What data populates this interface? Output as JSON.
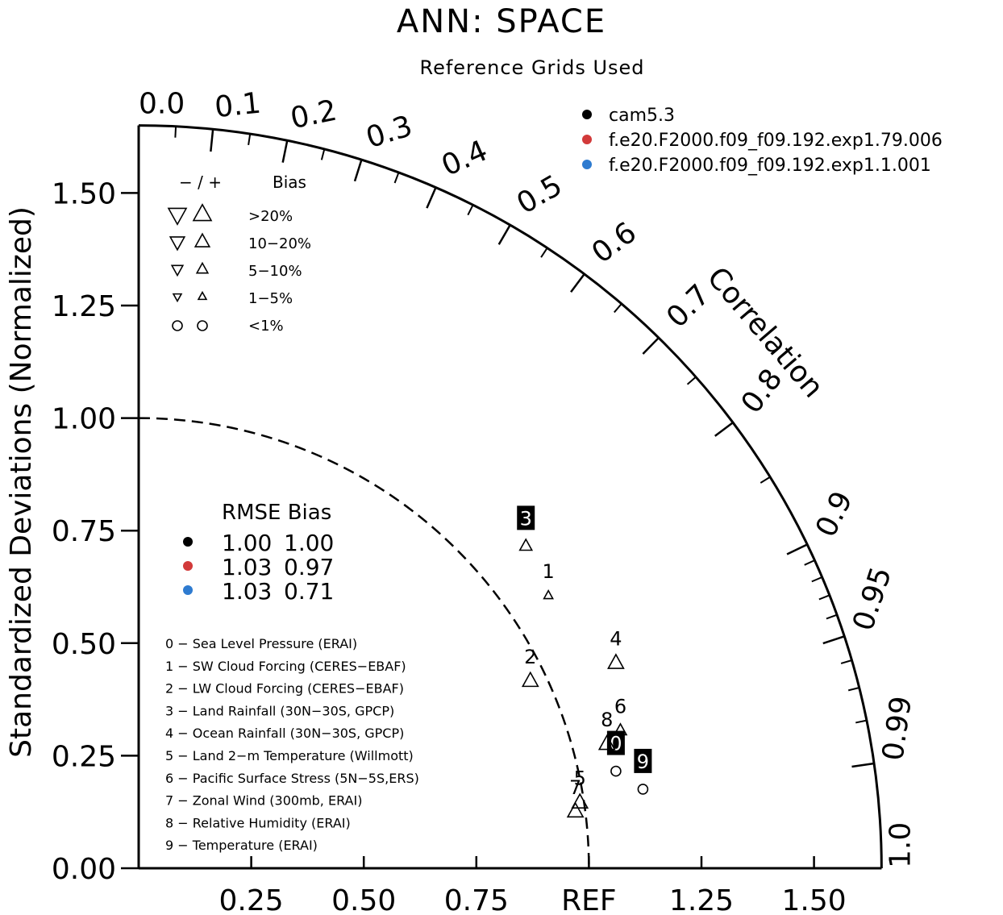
{
  "chart_data": {
    "type": "scatter",
    "subtype": "taylor-diagram",
    "title": "ANN: SPACE",
    "subtitle": "Reference Grids Used",
    "ylabel": "Standardized Deviations (Normalized)",
    "correlation_label": "Correlation",
    "ref_label": "REF",
    "y_ticks": [
      "0.00",
      "0.25",
      "0.50",
      "0.75",
      "1.00",
      "1.25",
      "1.50"
    ],
    "x_ticks": [
      "0.25",
      "0.50",
      "0.75",
      "1.25",
      "1.50"
    ],
    "corr_ticks": [
      "0.0",
      "0.1",
      "0.2",
      "0.3",
      "0.4",
      "0.5",
      "0.6",
      "0.7",
      "0.8",
      "0.9",
      "0.95",
      "0.99",
      "1.0"
    ],
    "max_std": 1.65,
    "colors": {
      "black": "#000000",
      "red": "#d23a3a",
      "blue": "#2e7bd0"
    },
    "series": [
      {
        "name": "cam5.3",
        "color": "#000000",
        "rmse": "1.00",
        "bias": "1.00"
      },
      {
        "name": "f.e20.F2000.f09_f09.192.exp1.79.006",
        "color": "#d23a3a",
        "rmse": "1.03",
        "bias": "0.97"
      },
      {
        "name": "f.e20.F2000.f09_f09.192.exp1.1.001",
        "color": "#2e7bd0",
        "rmse": "1.03",
        "bias": "0.71"
      }
    ],
    "bias_legend": {
      "header_sign": "−  /  +",
      "header": "Bias",
      "rows": [
        {
          "label": ">20%",
          "size": 1.0
        },
        {
          "label": "10−20%",
          "size": 0.8
        },
        {
          "label": "5−10%",
          "size": 0.62
        },
        {
          "label": "1−5%",
          "size": 0.45
        },
        {
          "label": "<1%",
          "size": 0
        }
      ]
    },
    "rmse_legend": {
      "header": "RMSE Bias"
    },
    "variables": [
      "0 − Sea Level Pressure (ERAI)",
      "1 − SW Cloud Forcing (CERES−EBAF)",
      "2 − LW Cloud Forcing (CERES−EBAF)",
      "3 − Land Rainfall (30N−30S, GPCP)",
      "4 − Ocean Rainfall (30N−30S, GPCP)",
      "5 − Land 2−m Temperature (Willmott)",
      "6 − Pacific Surface Stress (5N−5S,ERS)",
      "7 − Zonal Wind (300mb, ERAI)",
      "8 − Relative Humidity (ERAI)",
      "9 − Temperature (ERAI)"
    ],
    "points": [
      {
        "series": 0,
        "var": "0",
        "x": 1.06,
        "y": 0.23,
        "bias_pct": 0.5,
        "boxed": true
      },
      {
        "series": 0,
        "var": "1",
        "x": 0.91,
        "y": 0.62,
        "bias_pct": 3,
        "boxed": false
      },
      {
        "series": 0,
        "var": "2",
        "x": 0.87,
        "y": 0.43,
        "bias_pct": 12,
        "boxed": false
      },
      {
        "series": 0,
        "var": "3",
        "x": 0.86,
        "y": 0.73,
        "bias_pct": 7,
        "boxed": true
      },
      {
        "series": 0,
        "var": "4",
        "x": 1.06,
        "y": 0.47,
        "bias_pct": 12,
        "boxed": false
      },
      {
        "series": 0,
        "var": "5",
        "x": 0.98,
        "y": 0.16,
        "bias_pct": 12,
        "boxed": false
      },
      {
        "series": 0,
        "var": "6",
        "x": 1.07,
        "y": 0.32,
        "bias_pct": 8,
        "boxed": false
      },
      {
        "series": 0,
        "var": "7",
        "x": 0.97,
        "y": 0.14,
        "bias_pct": 12,
        "boxed": false
      },
      {
        "series": 0,
        "var": "8",
        "x": 1.04,
        "y": 0.29,
        "bias_pct": 12,
        "boxed": false
      },
      {
        "series": 0,
        "var": "9",
        "x": 1.12,
        "y": 0.19,
        "bias_pct": 0.5,
        "boxed": true
      }
    ]
  }
}
